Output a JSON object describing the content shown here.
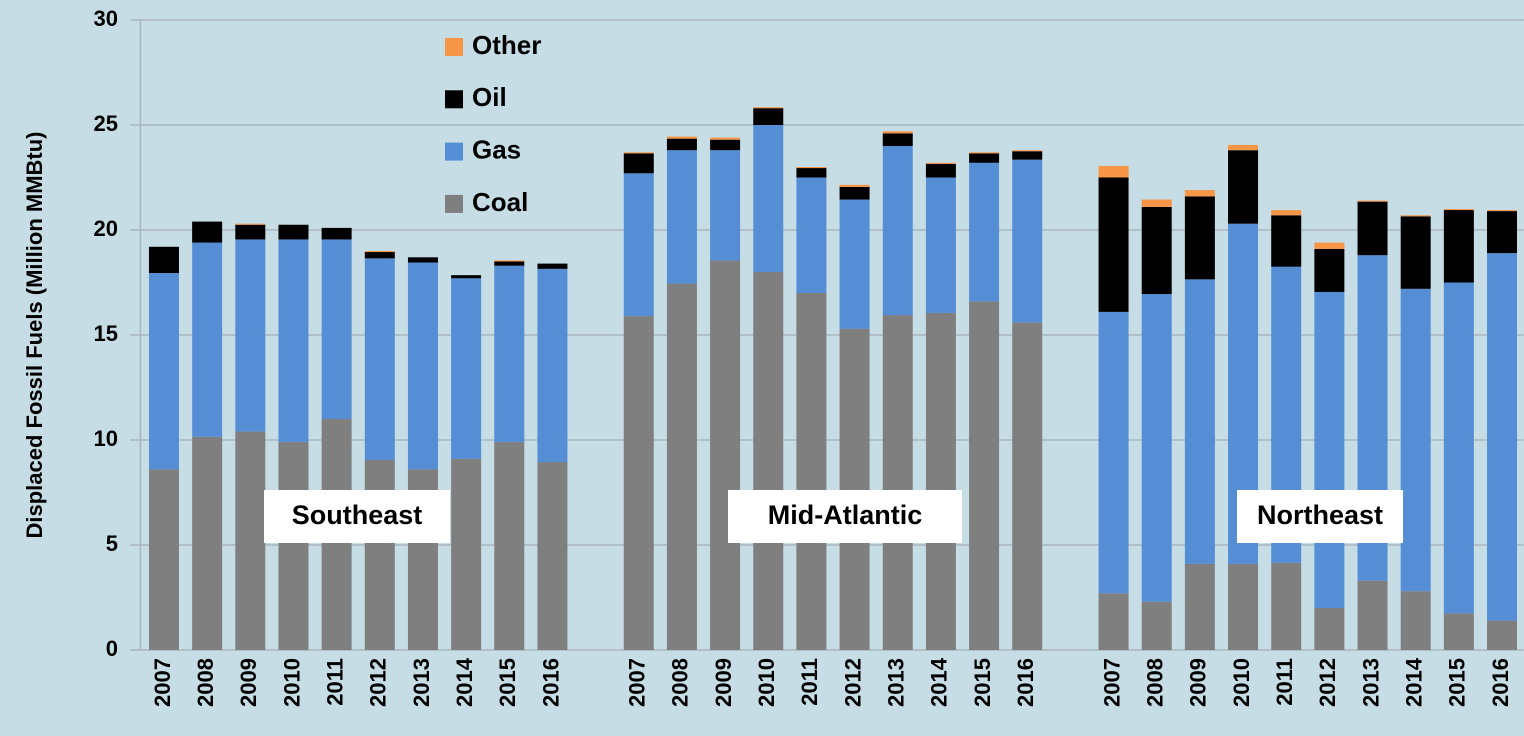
{
  "chart_data": {
    "type": "stacked_bar",
    "y_label": "Displaced Fossil Fuels (Million MMBtu)",
    "categories": [
      "2007",
      "2008",
      "2009",
      "2010",
      "2011",
      "2012",
      "2013",
      "2014",
      "2015",
      "2016",
      null,
      "2007",
      "2008",
      "2009",
      "2010",
      "2011",
      "2012",
      "2013",
      "2014",
      "2015",
      "2016",
      null,
      "2007",
      "2008",
      "2009",
      "2010",
      "2011",
      "2012",
      "2013",
      "2014",
      "2015",
      "2016"
    ],
    "series": [
      {
        "name": "Coal",
        "color": "#7f7f7f",
        "values": [
          8.6,
          10.15,
          10.4,
          9.9,
          11.0,
          9.05,
          8.6,
          9.1,
          9.9,
          8.95,
          null,
          15.9,
          17.45,
          18.55,
          18.0,
          17.0,
          15.3,
          15.95,
          16.05,
          16.6,
          15.6,
          null,
          2.7,
          2.3,
          4.1,
          4.1,
          4.15,
          2.0,
          3.3,
          2.8,
          1.75,
          1.4
        ]
      },
      {
        "name": "Gas",
        "color": "#558ed5",
        "values": [
          9.35,
          9.25,
          9.15,
          9.65,
          8.55,
          9.6,
          9.85,
          8.6,
          8.4,
          9.2,
          null,
          6.8,
          6.35,
          5.25,
          7.0,
          5.5,
          6.15,
          8.05,
          6.45,
          6.6,
          7.75,
          null,
          13.4,
          14.65,
          13.55,
          16.2,
          14.1,
          15.05,
          15.5,
          14.4,
          15.75,
          17.5
        ]
      },
      {
        "name": "Oil",
        "color": "#000000",
        "values": [
          1.25,
          1.0,
          0.7,
          0.7,
          0.55,
          0.3,
          0.25,
          0.15,
          0.2,
          0.25,
          null,
          0.95,
          0.55,
          0.5,
          0.8,
          0.45,
          0.6,
          0.6,
          0.65,
          0.45,
          0.4,
          null,
          6.4,
          4.15,
          3.95,
          3.5,
          2.45,
          2.05,
          2.55,
          3.45,
          3.45,
          2.0
        ]
      },
      {
        "name": "Other",
        "color": "#f79646",
        "values": [
          0,
          0,
          0.05,
          0,
          0,
          0.05,
          0,
          0,
          0.05,
          0,
          null,
          0.05,
          0.1,
          0.1,
          0.05,
          0.05,
          0.1,
          0.1,
          0.05,
          0.05,
          0.05,
          null,
          0.55,
          0.35,
          0.3,
          0.25,
          0.25,
          0.3,
          0.05,
          0.05,
          0.05,
          0.05
        ]
      }
    ],
    "annotations": [
      "Southeast",
      "Mid-Atlantic",
      "Northeast"
    ],
    "ylim": [
      0,
      30
    ],
    "yticks": [
      0,
      5,
      10,
      15,
      20,
      25,
      30
    ],
    "grid": true,
    "legend": "top-left"
  }
}
